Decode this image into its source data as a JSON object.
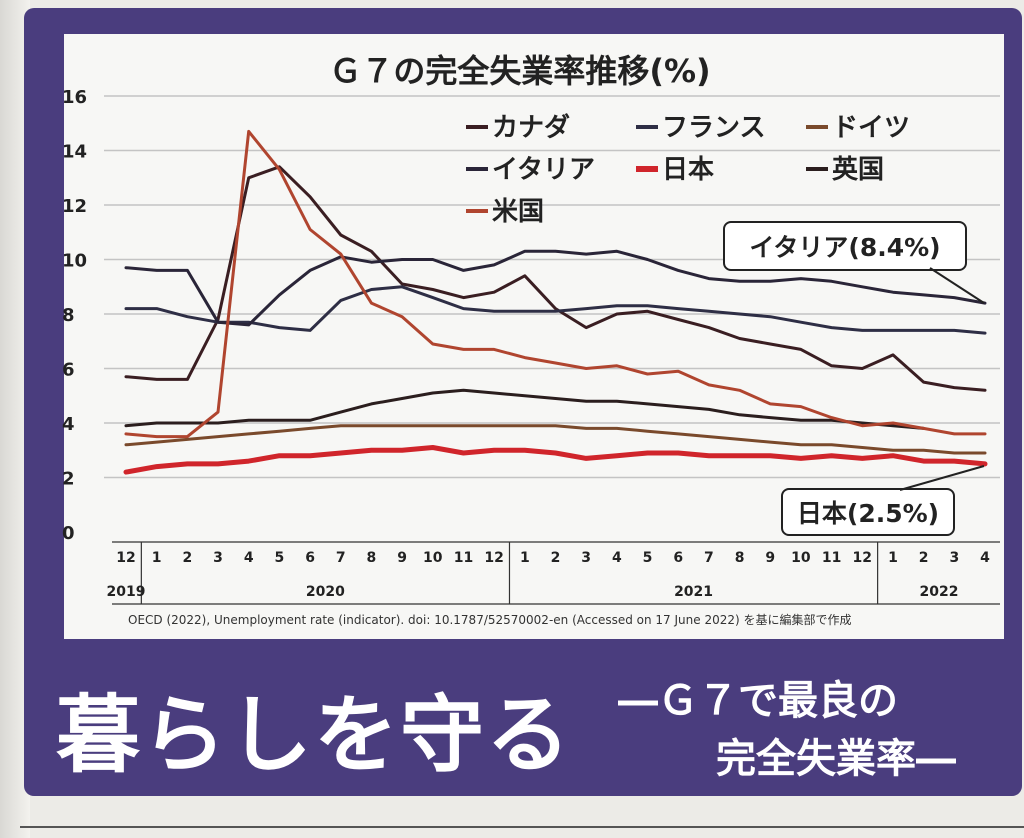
{
  "chart_data": {
    "type": "line",
    "title": "Ｇ７の完全失業率推移(%)",
    "xlabel": "",
    "ylabel": "",
    "ylim": [
      0,
      16
    ],
    "yticks": [
      "16",
      "14",
      "12",
      "10",
      "8",
      "6",
      "4",
      "2",
      "0"
    ],
    "grid": true,
    "legend_position": "top-right",
    "x": [
      "2019-12",
      "2020-01",
      "2020-02",
      "2020-03",
      "2020-04",
      "2020-05",
      "2020-06",
      "2020-07",
      "2020-08",
      "2020-09",
      "2020-10",
      "2020-11",
      "2020-12",
      "2021-01",
      "2021-02",
      "2021-03",
      "2021-04",
      "2021-05",
      "2021-06",
      "2021-07",
      "2021-08",
      "2021-09",
      "2021-10",
      "2021-11",
      "2021-12",
      "2022-01",
      "2022-02",
      "2022-03",
      "2022-04"
    ],
    "month_labels": [
      "12",
      "1",
      "2",
      "3",
      "4",
      "5",
      "6",
      "7",
      "8",
      "9",
      "10",
      "11",
      "12",
      "1",
      "2",
      "3",
      "4",
      "5",
      "6",
      "7",
      "8",
      "9",
      "10",
      "11",
      "12",
      "1",
      "2",
      "3",
      "4"
    ],
    "year_labels": [
      "2019",
      "2020",
      "2021",
      "2022"
    ],
    "series": [
      {
        "name": "カナダ",
        "color": "#3a1e22",
        "values": [
          5.7,
          5.6,
          5.6,
          7.8,
          13.0,
          13.4,
          12.3,
          10.9,
          10.3,
          9.1,
          8.9,
          8.6,
          8.8,
          9.4,
          8.2,
          7.5,
          8.0,
          8.1,
          7.8,
          7.5,
          7.1,
          6.9,
          6.7,
          6.1,
          6.0,
          6.5,
          5.5,
          5.3,
          5.2
        ]
      },
      {
        "name": "フランス",
        "color": "#2e2e45",
        "values": [
          8.2,
          8.2,
          7.9,
          7.7,
          7.7,
          7.5,
          7.4,
          8.5,
          8.9,
          9.0,
          8.6,
          8.2,
          8.1,
          8.1,
          8.1,
          8.2,
          8.3,
          8.3,
          8.2,
          8.1,
          8.0,
          7.9,
          7.7,
          7.5,
          7.4,
          7.4,
          7.4,
          7.4,
          7.3
        ]
      },
      {
        "name": "ドイツ",
        "color": "#7a4a2c",
        "values": [
          3.2,
          3.3,
          3.4,
          3.5,
          3.6,
          3.7,
          3.8,
          3.9,
          3.9,
          3.9,
          3.9,
          3.9,
          3.9,
          3.9,
          3.9,
          3.8,
          3.8,
          3.7,
          3.6,
          3.5,
          3.4,
          3.3,
          3.2,
          3.2,
          3.1,
          3.0,
          3.0,
          2.9,
          2.9
        ]
      },
      {
        "name": "イタリア",
        "color": "#2a2538",
        "values": [
          9.7,
          9.6,
          9.6,
          7.7,
          7.6,
          8.7,
          9.6,
          10.1,
          9.9,
          10.0,
          10.0,
          9.6,
          9.8,
          10.3,
          10.3,
          10.2,
          10.3,
          10.0,
          9.6,
          9.3,
          9.2,
          9.2,
          9.3,
          9.2,
          9.0,
          8.8,
          8.7,
          8.6,
          8.4
        ]
      },
      {
        "name": "日本",
        "color": "#d0252b",
        "values": [
          2.2,
          2.4,
          2.5,
          2.5,
          2.6,
          2.8,
          2.8,
          2.9,
          3.0,
          3.0,
          3.1,
          2.9,
          3.0,
          3.0,
          2.9,
          2.7,
          2.8,
          2.9,
          2.9,
          2.8,
          2.8,
          2.8,
          2.7,
          2.8,
          2.7,
          2.8,
          2.6,
          2.6,
          2.5
        ]
      },
      {
        "name": "英国",
        "color": "#2b1e1e",
        "values": [
          3.9,
          4.0,
          4.0,
          4.0,
          4.1,
          4.1,
          4.1,
          4.4,
          4.7,
          4.9,
          5.1,
          5.2,
          5.1,
          5.0,
          4.9,
          4.8,
          4.8,
          4.7,
          4.6,
          4.5,
          4.3,
          4.2,
          4.1,
          4.1,
          4.0,
          3.9,
          3.8,
          null,
          null
        ]
      },
      {
        "name": "米国",
        "color": "#b0452f",
        "values": [
          3.6,
          3.5,
          3.5,
          4.4,
          14.7,
          13.3,
          11.1,
          10.2,
          8.4,
          7.9,
          6.9,
          6.7,
          6.7,
          6.4,
          6.2,
          6.0,
          6.1,
          5.8,
          5.9,
          5.4,
          5.2,
          4.7,
          4.6,
          4.2,
          3.9,
          4.0,
          3.8,
          3.6,
          3.6
        ]
      }
    ],
    "annotations": [
      "イタリア(8.4%)",
      "日本(2.5%)"
    ]
  },
  "source_note": "OECD (2022), Unemployment rate (indicator). doi: 10.1787/52570002-en (Accessed on 17 June 2022) を基に編集部で作成",
  "headline": "暮らしを守る",
  "subheadline_line1": "―Ｇ７で最良の",
  "subheadline_line2": "完全失業率―",
  "colors": {
    "panel": "#4a3d7e",
    "card": "#f7f7f5",
    "grid": "#bdbdbd",
    "text": "#222222"
  }
}
